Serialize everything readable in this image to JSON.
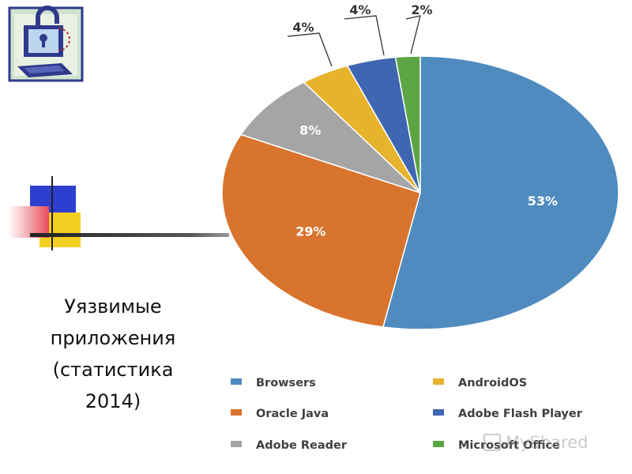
{
  "caption": {
    "lines": [
      "Уязвимые",
      "приложения",
      "(статистика",
      "2014)"
    ]
  },
  "watermark": "MyShared",
  "chart_data": {
    "type": "pie",
    "categories": [
      "Browsers",
      "Oracle Java",
      "Adobe Reader",
      "AndroidOS",
      "Adobe Flash Player",
      "Microsoft Office"
    ],
    "values": [
      53,
      29,
      8,
      4,
      4,
      2
    ],
    "labels": [
      "53%",
      "29%",
      "8%",
      "4%",
      "4%",
      "2%"
    ],
    "colors": [
      "#4f8bbf",
      "#d8742e",
      "#a5a5a5",
      "#e6b32c",
      "#3f66b0",
      "#5da544"
    ],
    "legend_placement": "bottom",
    "legend_order": [
      "Browsers",
      "AndroidOS",
      "Oracle Java",
      "Adobe Flash Player",
      "Adobe Reader",
      "Microsoft Office"
    ]
  }
}
